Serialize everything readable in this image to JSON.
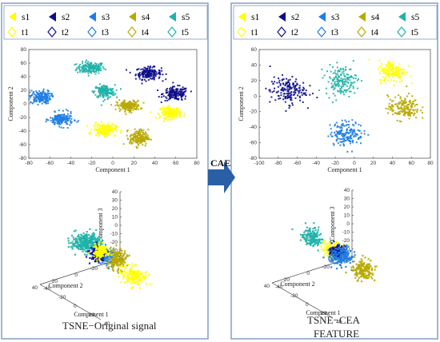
{
  "colors": {
    "s1": "#ffff00",
    "s2": "#0d0d8c",
    "s3": "#1f7de3",
    "s4": "#b8a900",
    "s5": "#1fb3a8",
    "panel_border": "#8aa6c8",
    "arrow": "#2a5fa5"
  },
  "legend": {
    "left": {
      "row1": [
        {
          "label": "s1",
          "key": "s1",
          "icon": "triangle-left-icon"
        },
        {
          "label": "s2",
          "key": "s2",
          "icon": "triangle-left-icon"
        },
        {
          "label": "s3",
          "key": "s3",
          "icon": "triangle-left-icon"
        },
        {
          "label": "s4",
          "key": "s4",
          "icon": "triangle-left-icon"
        },
        {
          "label": "s5",
          "key": "s5",
          "icon": "triangle-left-icon"
        }
      ],
      "row2": [
        {
          "label": "t1",
          "key": "s1",
          "icon": "diamond-icon"
        },
        {
          "label": "t2",
          "key": "s2",
          "icon": "diamond-icon"
        },
        {
          "label": "t3",
          "key": "s3",
          "icon": "diamond-icon"
        },
        {
          "label": "t4",
          "key": "s4",
          "icon": "diamond-icon"
        },
        {
          "label": "t5",
          "key": "s5",
          "icon": "diamond-icon"
        }
      ]
    },
    "right": {
      "row1": [
        {
          "label": "s1",
          "key": "s1",
          "icon": "triangle-left-icon"
        },
        {
          "label": "s2",
          "key": "s2",
          "icon": "triangle-left-icon"
        },
        {
          "label": "s3",
          "key": "s3",
          "icon": "triangle-left-icon"
        },
        {
          "label": "s4",
          "key": "s4",
          "icon": "triangle-left-icon"
        },
        {
          "label": "s5",
          "key": "s5",
          "icon": "triangle-left-icon"
        }
      ],
      "row2": [
        {
          "label": "t1",
          "key": "s1",
          "icon": "diamond-icon"
        },
        {
          "label": "t2",
          "key": "s2",
          "icon": "diamond-icon"
        },
        {
          "label": "t3",
          "key": "s3",
          "icon": "diamond-icon"
        },
        {
          "label": "t4",
          "key": "s4",
          "icon": "diamond-icon"
        },
        {
          "label": "t5",
          "key": "s5",
          "icon": "diamond-icon"
        }
      ]
    }
  },
  "arrow_label": "CAE",
  "captions": {
    "left": "TSNE−Original signal",
    "right_line1": "TSNE−CEA",
    "right_line2": "FEATURE"
  },
  "chart_data": [
    {
      "type": "scatter",
      "panel": "left-2d",
      "xlabel": "Component 1",
      "ylabel": "Component 2",
      "xlim": [
        -80,
        80
      ],
      "ylim": [
        -80,
        80
      ],
      "xticks": [
        -80,
        -60,
        -40,
        -20,
        0,
        20,
        40,
        60,
        80
      ],
      "yticks": [
        -80,
        -60,
        -40,
        -20,
        0,
        20,
        40,
        60,
        80
      ],
      "grid": false,
      "clusters": [
        {
          "key": "s5",
          "center": [
            -21,
            53
          ],
          "spread": [
            12,
            8
          ]
        },
        {
          "key": "s2",
          "center": [
            34,
            45
          ],
          "spread": [
            11,
            8
          ]
        },
        {
          "key": "s2",
          "center": [
            60,
            15
          ],
          "spread": [
            11,
            9
          ]
        },
        {
          "key": "s5",
          "center": [
            -8,
            18
          ],
          "spread": [
            9,
            9
          ]
        },
        {
          "key": "s3",
          "center": [
            -69,
            10
          ],
          "spread": [
            9,
            9
          ]
        },
        {
          "key": "s4",
          "center": [
            15,
            -3
          ],
          "spread": [
            10,
            7
          ]
        },
        {
          "key": "s1",
          "center": [
            55,
            -13
          ],
          "spread": [
            9,
            8
          ]
        },
        {
          "key": "s3",
          "center": [
            -49,
            -23
          ],
          "spread": [
            10,
            9
          ]
        },
        {
          "key": "s1",
          "center": [
            -8,
            -38
          ],
          "spread": [
            10,
            8
          ]
        },
        {
          "key": "s4",
          "center": [
            25,
            -50
          ],
          "spread": [
            8,
            11
          ]
        }
      ]
    },
    {
      "type": "scatter",
      "panel": "right-2d",
      "xlabel": "Component 1",
      "ylabel": "Component 2",
      "xlim": [
        -100,
        80
      ],
      "ylim": [
        -80,
        60
      ],
      "xticks": [
        -100,
        -80,
        -60,
        -40,
        -20,
        0,
        20,
        40,
        60,
        80
      ],
      "yticks": [
        -80,
        -60,
        -40,
        -20,
        0,
        20,
        40,
        60
      ],
      "grid": false,
      "clusters": [
        {
          "key": "s1",
          "center": [
            40,
            32
          ],
          "spread": [
            13,
            13
          ]
        },
        {
          "key": "s5",
          "center": [
            -14,
            20
          ],
          "spread": [
            15,
            17
          ]
        },
        {
          "key": "s2",
          "center": [
            -70,
            7
          ],
          "spread": [
            17,
            16
          ]
        },
        {
          "key": "s4",
          "center": [
            52,
            -15
          ],
          "spread": [
            15,
            14
          ]
        },
        {
          "key": "s3",
          "center": [
            -8,
            -48
          ],
          "spread": [
            16,
            14
          ]
        }
      ]
    },
    {
      "type": "scatter",
      "panel": "left-3d",
      "xlabel": "Component 1",
      "ylabel": "Component 2",
      "zlabel": "Component 3",
      "zticks": [
        -40,
        -30,
        -20,
        -10,
        0,
        10,
        20,
        30,
        40
      ],
      "yticks": [
        -40,
        -20,
        0,
        20,
        40
      ],
      "xticks": [
        -40,
        -20,
        0,
        20,
        40
      ],
      "clusters": [
        {
          "key": "s5",
          "center": [
            -25,
            10,
            5
          ],
          "spread": [
            8,
            6,
            8
          ]
        },
        {
          "key": "s5",
          "center": [
            -5,
            15,
            20
          ],
          "spread": [
            7,
            6,
            6
          ]
        },
        {
          "key": "s3",
          "center": [
            -15,
            -5,
            -10
          ],
          "spread": [
            8,
            6,
            7
          ]
        },
        {
          "key": "s2",
          "center": [
            10,
            20,
            15
          ],
          "spread": [
            5,
            5,
            6
          ]
        },
        {
          "key": "s4",
          "center": [
            15,
            5,
            5
          ],
          "spread": [
            7,
            6,
            10
          ]
        },
        {
          "key": "s1",
          "center": [
            10,
            -15,
            -25
          ],
          "spread": [
            9,
            7,
            8
          ]
        },
        {
          "key": "s1",
          "center": [
            20,
            25,
            25
          ],
          "spread": [
            5,
            5,
            6
          ]
        }
      ]
    },
    {
      "type": "scatter",
      "panel": "right-3d",
      "xlabel": "Component 1",
      "ylabel": "Component 2",
      "zlabel": "Component 3",
      "zticks": [
        -40,
        -30,
        -20,
        -10,
        0,
        10,
        20,
        30,
        40
      ],
      "yticks": [
        -40,
        -20,
        0,
        20,
        40
      ],
      "xticks": [
        -40,
        -20,
        0,
        20,
        40
      ],
      "clusters": [
        {
          "key": "s5",
          "center": [
            -20,
            15,
            15
          ],
          "spread": [
            8,
            6,
            8
          ]
        },
        {
          "key": "s1",
          "center": [
            15,
            20,
            20
          ],
          "spread": [
            7,
            6,
            7
          ]
        },
        {
          "key": "s2",
          "center": [
            0,
            5,
            5
          ],
          "spread": [
            5,
            5,
            5
          ]
        },
        {
          "key": "s3",
          "center": [
            -15,
            -10,
            -15
          ],
          "spread": [
            9,
            7,
            8
          ]
        },
        {
          "key": "s4",
          "center": [
            20,
            -5,
            -10
          ],
          "spread": [
            8,
            7,
            8
          ]
        }
      ]
    }
  ]
}
